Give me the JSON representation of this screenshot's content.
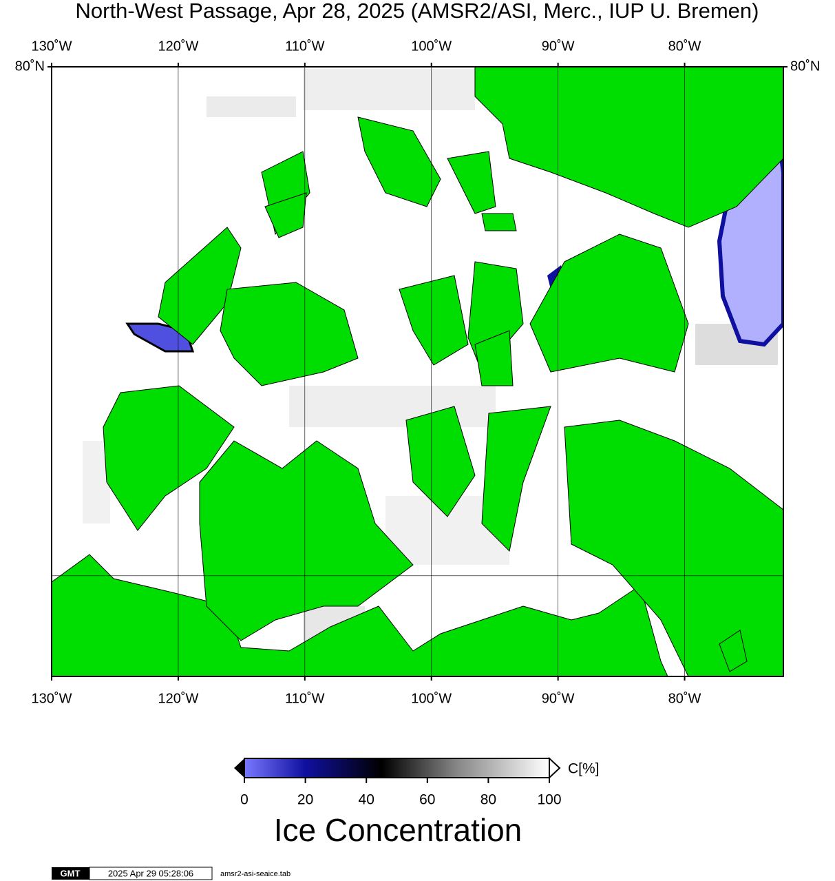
{
  "map": {
    "title": "North-West Passage, Apr 28, 2025 (AMSR2/ASI, Merc., IUP U. Bremen)",
    "projection": "mercator",
    "xlim": [
      -130,
      -72.2
    ],
    "ylim": [
      67.1,
      80
    ],
    "xticks": [
      {
        "value": -130,
        "label": "130˚W"
      },
      {
        "value": -120,
        "label": "120˚W"
      },
      {
        "value": -110,
        "label": "110˚W"
      },
      {
        "value": -100,
        "label": "100˚W"
      },
      {
        "value": -90,
        "label": "90˚W"
      },
      {
        "value": -80,
        "label": "80˚W"
      }
    ],
    "yticks": [
      {
        "value": 80,
        "label": "80˚N"
      }
    ],
    "lat_gridlines": [
      70
    ],
    "land_color": "#00dd00"
  },
  "colorbar": {
    "lim": [
      0,
      100
    ],
    "ticks": [
      0,
      20,
      40,
      60,
      80,
      100
    ],
    "unit": "C[%]",
    "title": "Ice Concentration"
  },
  "footer": {
    "logo": "GMT",
    "timestamp": "2025 Apr 29 05:28:06",
    "file": "amsr2-asi-seaice.tab"
  }
}
